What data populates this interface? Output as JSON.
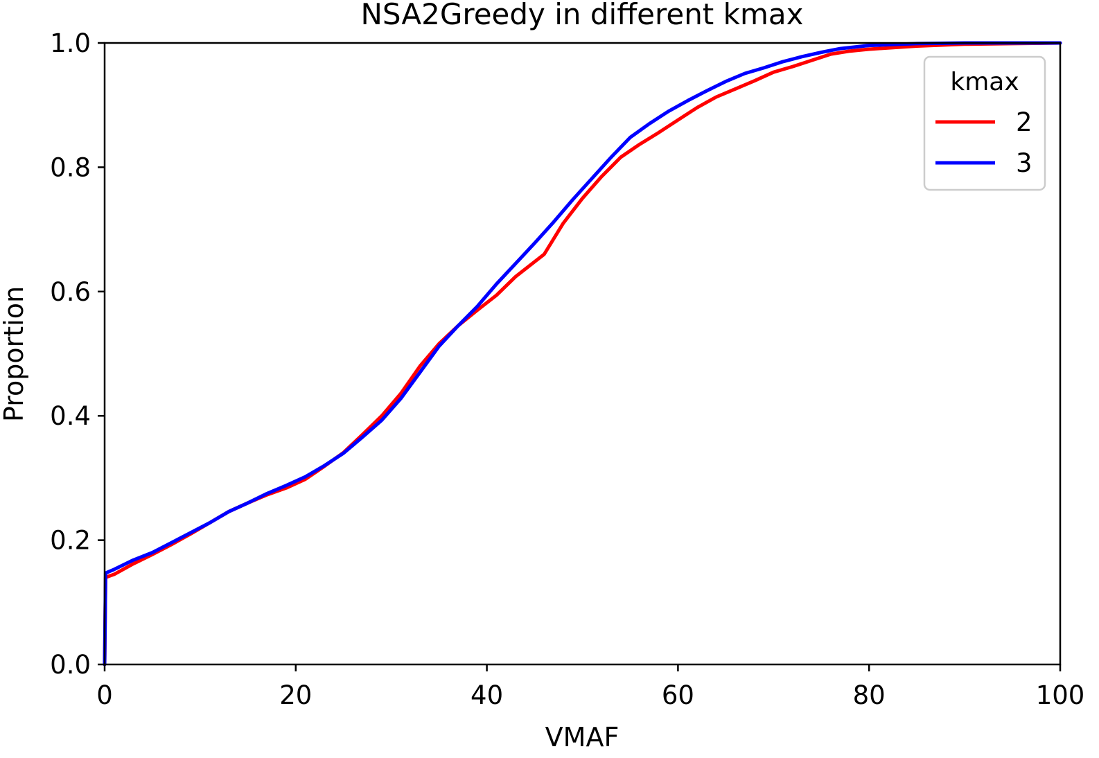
{
  "chart_data": {
    "type": "line",
    "title": "NSA2Greedy in different kmax",
    "xlabel": "VMAF",
    "ylabel": "Proportion",
    "xlim": [
      0,
      100
    ],
    "ylim": [
      0,
      1.0
    ],
    "x_ticks": [
      "0",
      "20",
      "40",
      "60",
      "80",
      "100"
    ],
    "y_ticks": [
      "0.0",
      "0.2",
      "0.4",
      "0.6",
      "0.8",
      "1.0"
    ],
    "grid": false,
    "legend": {
      "title": "kmax",
      "placement": "top-right"
    },
    "series": [
      {
        "name": "2",
        "color": "#ff0000",
        "x": [
          0,
          0.1,
          1,
          3,
          5,
          7,
          9,
          11,
          13,
          15,
          17,
          19,
          21,
          23,
          25,
          27,
          29,
          31,
          33,
          35,
          37,
          39,
          41,
          43,
          45,
          46,
          48,
          50,
          52,
          54,
          56,
          58,
          60,
          62,
          64,
          66,
          68,
          70,
          72,
          74,
          76,
          78,
          80,
          85,
          90,
          95,
          100
        ],
        "y": [
          0,
          0.14,
          0.145,
          0.162,
          0.177,
          0.193,
          0.21,
          0.228,
          0.246,
          0.26,
          0.273,
          0.284,
          0.298,
          0.319,
          0.341,
          0.37,
          0.4,
          0.436,
          0.48,
          0.516,
          0.545,
          0.57,
          0.594,
          0.624,
          0.648,
          0.66,
          0.71,
          0.75,
          0.785,
          0.816,
          0.837,
          0.856,
          0.876,
          0.896,
          0.913,
          0.926,
          0.939,
          0.953,
          0.962,
          0.972,
          0.982,
          0.987,
          0.99,
          0.995,
          0.998,
          0.999,
          1.0
        ]
      },
      {
        "name": "3",
        "color": "#0000ff",
        "x": [
          0,
          0.1,
          1,
          3,
          5,
          7,
          9,
          11,
          13,
          15,
          17,
          19,
          21,
          23,
          25,
          27,
          29,
          31,
          33,
          35,
          37,
          39,
          41,
          43,
          45,
          47,
          49,
          51,
          53,
          55,
          57,
          59,
          61,
          63,
          65,
          67,
          69,
          71,
          73,
          75,
          77,
          80,
          85,
          90,
          95,
          100
        ],
        "y": [
          0,
          0.147,
          0.153,
          0.168,
          0.18,
          0.196,
          0.212,
          0.228,
          0.246,
          0.26,
          0.275,
          0.288,
          0.302,
          0.32,
          0.34,
          0.366,
          0.393,
          0.428,
          0.47,
          0.512,
          0.545,
          0.576,
          0.612,
          0.645,
          0.678,
          0.712,
          0.748,
          0.782,
          0.816,
          0.848,
          0.87,
          0.89,
          0.907,
          0.923,
          0.938,
          0.951,
          0.96,
          0.97,
          0.978,
          0.985,
          0.991,
          0.996,
          0.999,
          1.0,
          1.0,
          1.0
        ]
      }
    ]
  }
}
